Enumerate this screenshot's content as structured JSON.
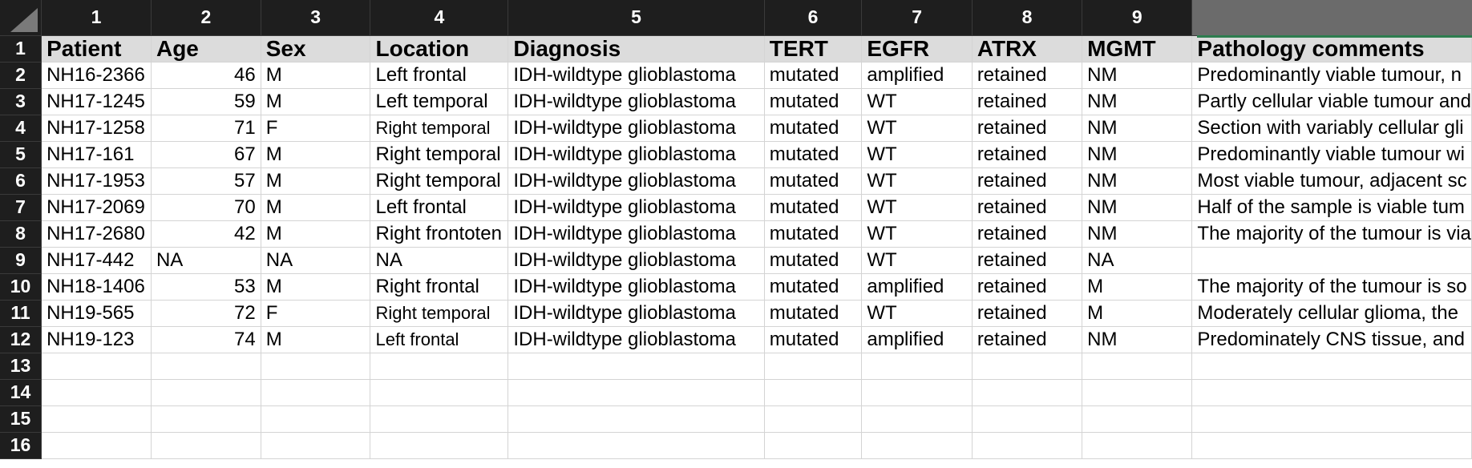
{
  "column_numbers": [
    "1",
    "2",
    "3",
    "4",
    "5",
    "6",
    "7",
    "8",
    "9"
  ],
  "header_row": {
    "row_number": "1",
    "cells": [
      "Patient",
      "Age",
      "Sex",
      "Location",
      "Diagnosis",
      "TERT",
      "EGFR",
      "ATRX",
      "MGMT",
      "Pathology comments"
    ]
  },
  "rows": [
    {
      "n": "2",
      "cells": [
        "NH16-2366",
        "46",
        "M",
        "Left frontal",
        "IDH-wildtype glioblastoma",
        "mutated",
        "amplified",
        "retained",
        "NM",
        "Predominantly viable tumour, n"
      ]
    },
    {
      "n": "3",
      "cells": [
        "NH17-1245",
        "59",
        "M",
        "Left temporal",
        "IDH-wildtype glioblastoma",
        "mutated",
        "WT",
        "retained",
        "NM",
        "Partly cellular viable tumour and"
      ]
    },
    {
      "n": "4",
      "cells": [
        "NH17-1258",
        "71",
        "F",
        "Right temporal",
        "IDH-wildtype glioblastoma",
        "mutated",
        "WT",
        "retained",
        "NM",
        "Section with variably cellular gli"
      ]
    },
    {
      "n": "5",
      "cells": [
        "NH17-161",
        "67",
        "M",
        "Right temporal",
        "IDH-wildtype glioblastoma",
        "mutated",
        "WT",
        "retained",
        "NM",
        "Predominantly viable tumour wi"
      ]
    },
    {
      "n": "6",
      "cells": [
        "NH17-1953",
        "57",
        "M",
        "Right temporal",
        "IDH-wildtype glioblastoma",
        "mutated",
        "WT",
        "retained",
        "NM",
        "Most viable tumour, adjacent sc"
      ]
    },
    {
      "n": "7",
      "cells": [
        "NH17-2069",
        "70",
        "M",
        "Left frontal",
        "IDH-wildtype glioblastoma",
        "mutated",
        "WT",
        "retained",
        "NM",
        "Half of the sample is viable tum"
      ]
    },
    {
      "n": "8",
      "cells": [
        "NH17-2680",
        "42",
        "M",
        "Right frontoten",
        "IDH-wildtype glioblastoma",
        "mutated",
        "WT",
        "retained",
        "NM",
        "The majority of the tumour is via"
      ]
    },
    {
      "n": "9",
      "cells": [
        "NH17-442",
        "NA",
        "NA",
        "NA",
        "IDH-wildtype glioblastoma",
        "mutated",
        "WT",
        "retained",
        "NA",
        ""
      ]
    },
    {
      "n": "10",
      "cells": [
        "NH18-1406",
        "53",
        "M",
        "Right frontal",
        "IDH-wildtype glioblastoma",
        "mutated",
        "amplified",
        "retained",
        "M",
        "The majority of the tumour is so"
      ]
    },
    {
      "n": "11",
      "cells": [
        "NH19-565",
        "72",
        "F",
        "Right temporal",
        "IDH-wildtype glioblastoma",
        "mutated",
        "WT",
        "retained",
        "M",
        "Moderately cellular glioma, the"
      ]
    },
    {
      "n": "12",
      "cells": [
        "NH19-123",
        "74",
        "M",
        "Left frontal",
        "IDH-wildtype glioblastoma",
        "mutated",
        "amplified",
        "retained",
        "NM",
        "Predominately CNS tissue, and"
      ]
    },
    {
      "n": "13",
      "cells": [
        "",
        "",
        "",
        "",
        "",
        "",
        "",
        "",
        "",
        ""
      ]
    },
    {
      "n": "14",
      "cells": [
        "",
        "",
        "",
        "",
        "",
        "",
        "",
        "",
        "",
        ""
      ]
    },
    {
      "n": "15",
      "cells": [
        "",
        "",
        "",
        "",
        "",
        "",
        "",
        "",
        "",
        ""
      ]
    },
    {
      "n": "16",
      "cells": [
        "",
        "",
        "",
        "",
        "",
        "",
        "",
        "",
        "",
        ""
      ]
    }
  ],
  "colors": {
    "header_bg": "#1e1e1e",
    "header_text": "#ffffff",
    "title_row_bg": "#dcdcdc",
    "gridline": "#d4d4d4",
    "selection_accent": "#2e7d4f"
  }
}
